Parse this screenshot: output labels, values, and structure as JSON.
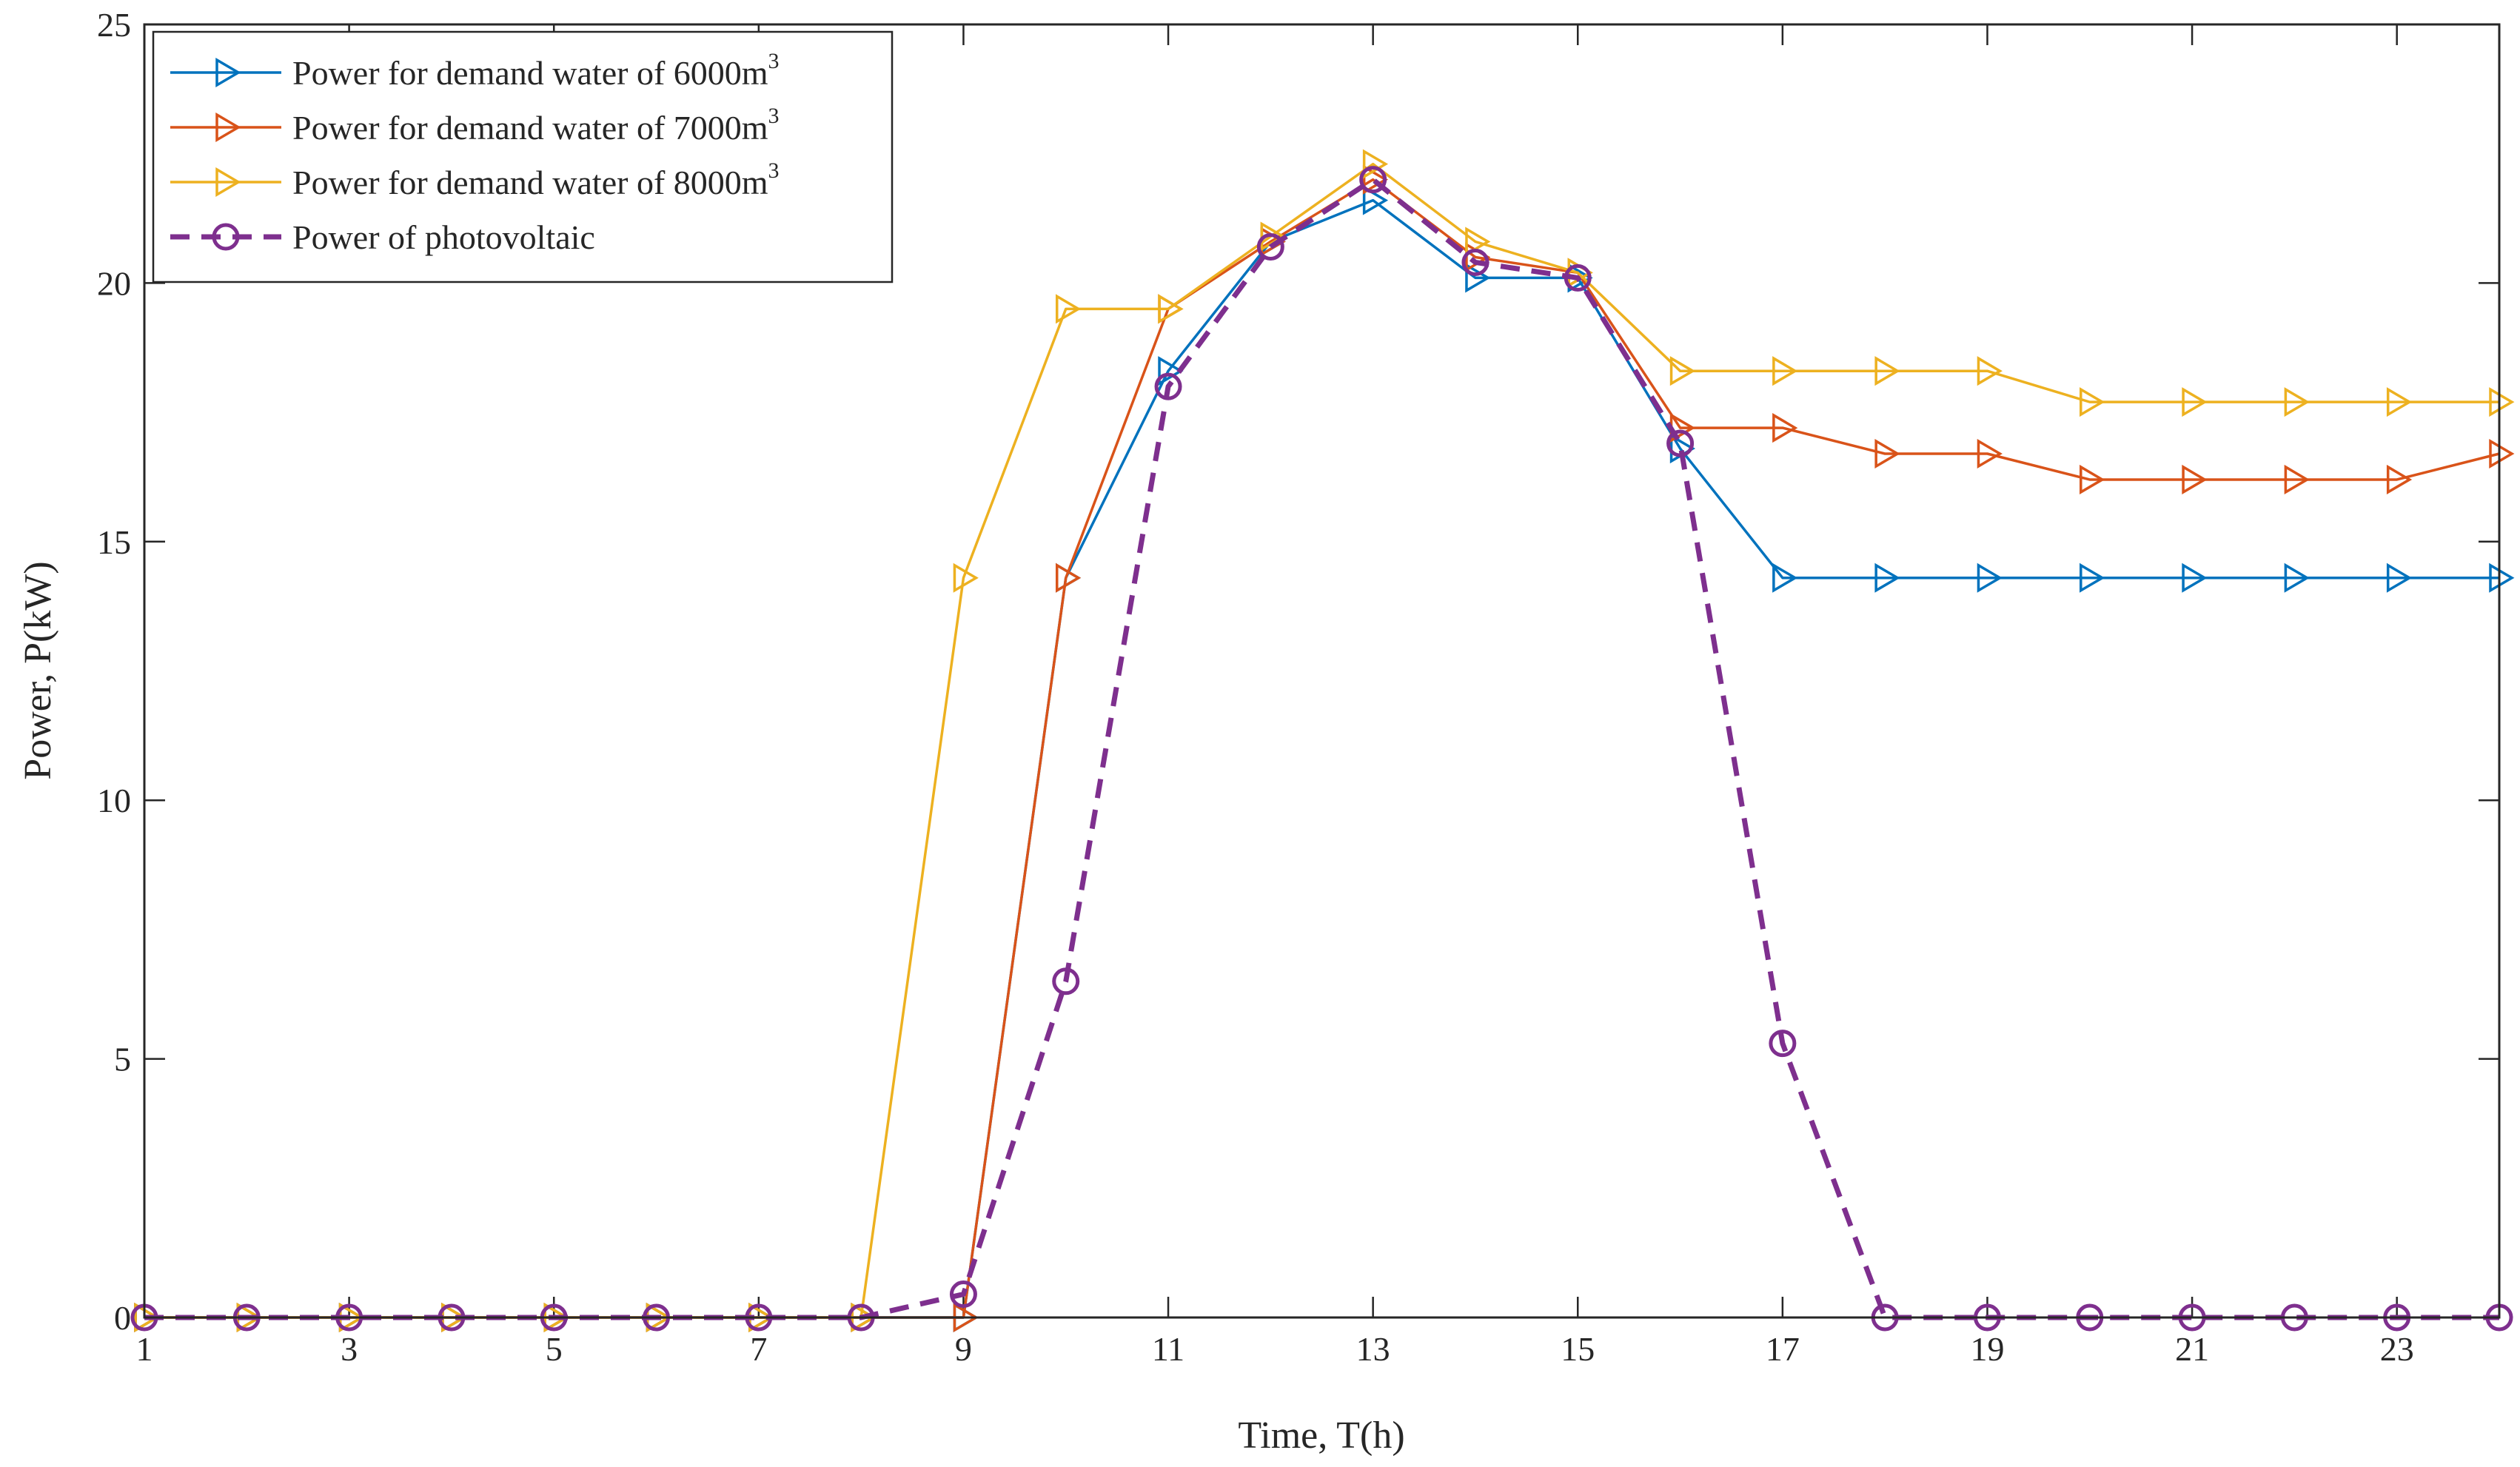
{
  "chart_data": {
    "type": "line",
    "title": "",
    "xlabel": "Time, T(h)",
    "ylabel": "Power, P(kW)",
    "xlim": [
      1,
      24
    ],
    "ylim": [
      0,
      25
    ],
    "xticks": [
      1,
      3,
      5,
      7,
      9,
      11,
      13,
      15,
      17,
      19,
      21,
      23
    ],
    "yticks": [
      0,
      5,
      10,
      15,
      20,
      25
    ],
    "x": [
      1,
      2,
      3,
      4,
      5,
      6,
      7,
      8,
      9,
      10,
      11,
      12,
      13,
      14,
      15,
      16,
      17,
      18,
      19,
      20,
      21,
      22,
      23,
      24
    ],
    "legend_position": "top-left",
    "series": [
      {
        "name": "Power for demand water of 6000m3",
        "label_text": "Power for demand water of 6000m",
        "label_sup": "3",
        "color": "#0072BD",
        "marker": "triangle-right",
        "dashed": false,
        "values": [
          0,
          0,
          0,
          0,
          0,
          0,
          0,
          0,
          0,
          14.3,
          18.3,
          20.8,
          21.6,
          20.1,
          20.1,
          16.8,
          14.3,
          14.3,
          14.3,
          14.3,
          14.3,
          14.3,
          14.3,
          14.3
        ]
      },
      {
        "name": "Power for demand water of 7000m3",
        "label_text": "Power for demand water of 7000m",
        "label_sup": "3",
        "color": "#D95319",
        "marker": "triangle-right",
        "dashed": false,
        "values": [
          0,
          0,
          0,
          0,
          0,
          0,
          0,
          0,
          0,
          14.3,
          19.5,
          20.8,
          22.0,
          20.5,
          20.2,
          17.2,
          17.2,
          16.7,
          16.7,
          16.2,
          16.2,
          16.2,
          16.2,
          16.7
        ]
      },
      {
        "name": "Power for demand water of 8000m3",
        "label_text": "Power for demand water of 8000m",
        "label_sup": "3",
        "color": "#EDB120",
        "marker": "triangle-right",
        "dashed": false,
        "values": [
          0,
          0,
          0,
          0,
          0,
          0,
          0,
          0,
          14.3,
          19.5,
          19.5,
          20.9,
          22.3,
          20.8,
          20.2,
          18.3,
          18.3,
          18.3,
          18.3,
          17.7,
          17.7,
          17.7,
          17.7,
          17.7
        ]
      },
      {
        "name": "Power of photovoltaic",
        "label_text": "Power of photovoltaic",
        "label_sup": "",
        "color": "#7E2F8E",
        "marker": "circle",
        "dashed": true,
        "values": [
          0,
          0,
          0,
          0,
          0,
          0,
          0,
          0,
          0.45,
          6.5,
          18.0,
          20.7,
          22.0,
          20.4,
          20.1,
          16.9,
          5.3,
          0,
          0,
          0,
          0,
          0,
          0,
          0
        ]
      }
    ]
  }
}
